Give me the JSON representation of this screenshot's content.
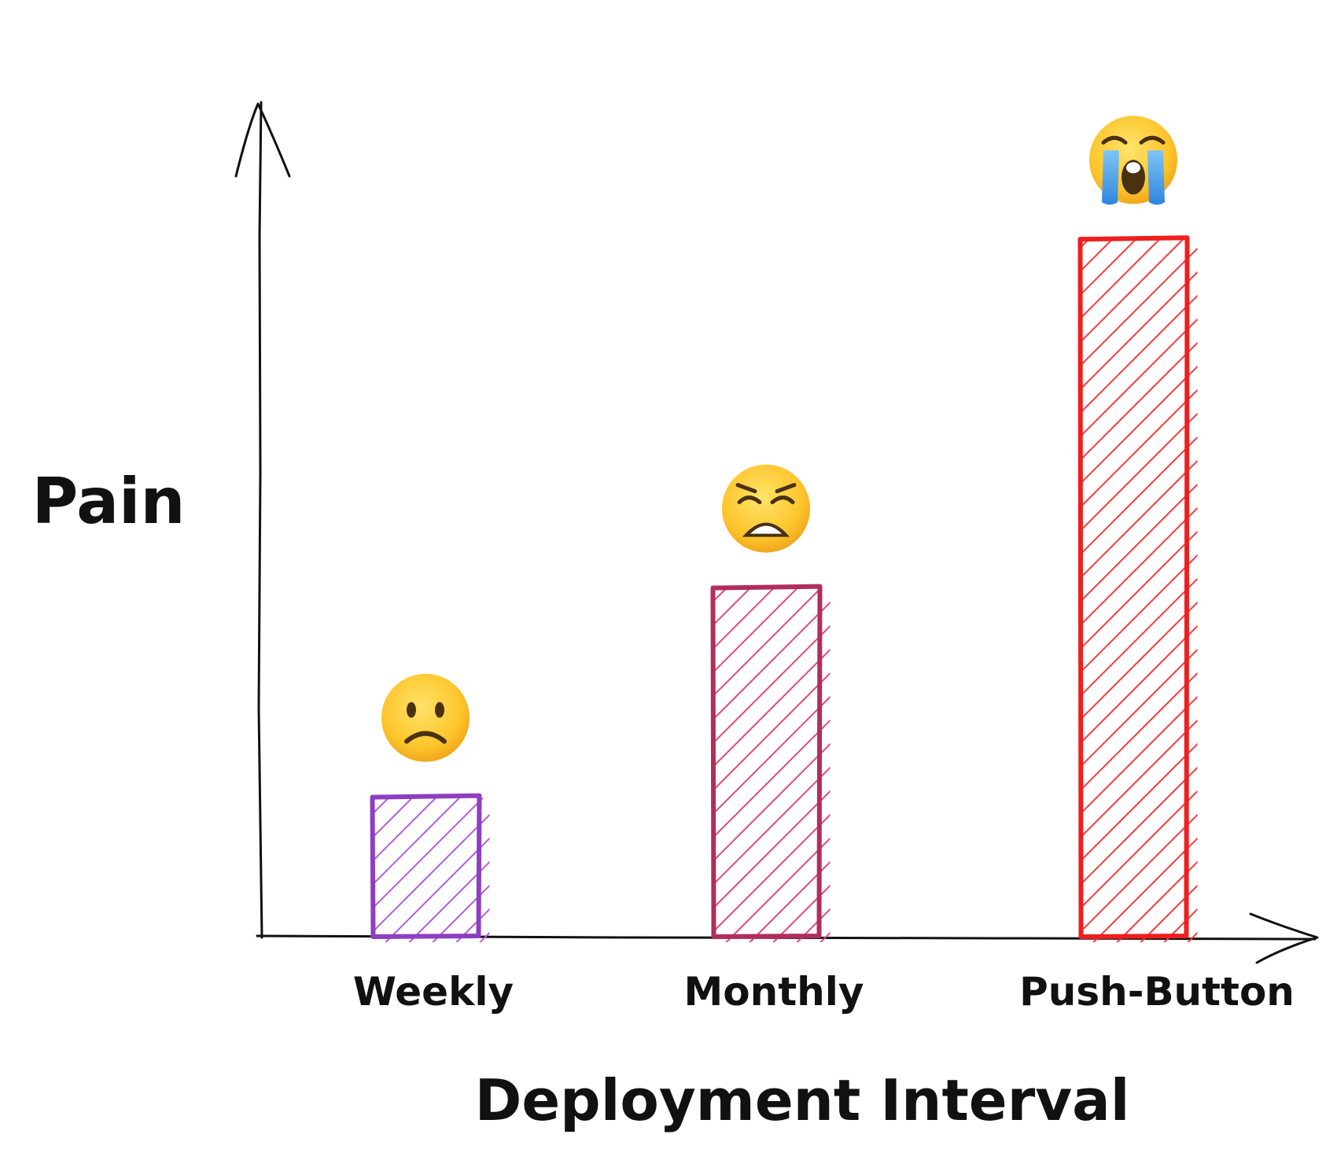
{
  "chart_data": {
    "type": "bar",
    "title": "",
    "xlabel": "Deployment Interval",
    "ylabel": "Pain",
    "categories": [
      "Weekly",
      "Monthly",
      "Push-Button"
    ],
    "values": [
      2,
      5,
      10
    ],
    "ylim": [
      0,
      11.3
    ],
    "grid": false,
    "legend": "none",
    "bar_style": "hatched",
    "bar_colors": [
      "#8E3FC0",
      "#B02E5E",
      "#F01E1E"
    ],
    "hatch_colors": [
      "#B25BDD",
      "#E0487D",
      "#F43A3A"
    ],
    "annotations": [
      {
        "category": "Weekly",
        "icon": "slightly-frowning-face-icon"
      },
      {
        "category": "Monthly",
        "icon": "weary-face-icon"
      },
      {
        "category": "Push-Button",
        "icon": "loudly-crying-face-icon"
      }
    ]
  }
}
